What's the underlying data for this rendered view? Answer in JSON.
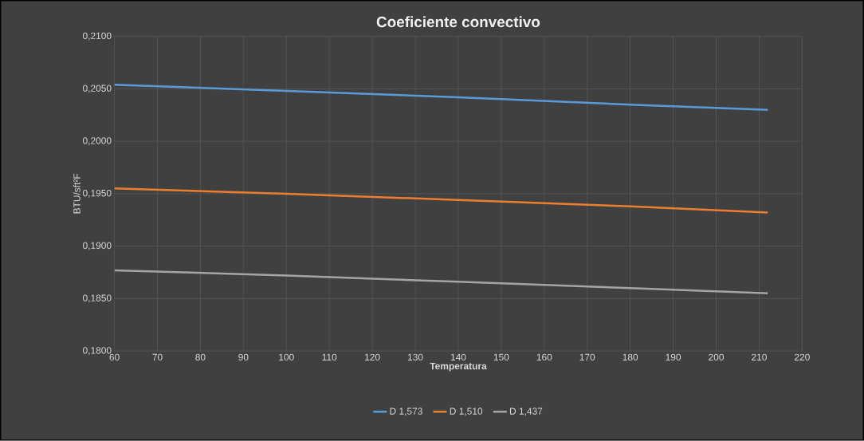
{
  "chart_data": {
    "type": "line",
    "title": "Coeficiente convectivo",
    "xlabel": "Temperatura",
    "ylabel": "BTU/sft²F",
    "x": [
      60,
      100,
      140,
      180,
      212
    ],
    "series": [
      {
        "name": "D 1,573",
        "color": "#5b9bd5",
        "values": [
          0.2054,
          0.2048,
          0.2042,
          0.2035,
          0.203
        ]
      },
      {
        "name": "D 1,510",
        "color": "#ed7d31",
        "values": [
          0.1955,
          0.195,
          0.1944,
          0.1938,
          0.1932
        ]
      },
      {
        "name": "D 1,437",
        "color": "#a5a5a5",
        "values": [
          0.1877,
          0.1872,
          0.1866,
          0.186,
          0.1855
        ]
      }
    ],
    "xlim": [
      60,
      220
    ],
    "xticks": [
      60,
      70,
      80,
      90,
      100,
      110,
      120,
      130,
      140,
      150,
      160,
      170,
      180,
      190,
      200,
      210,
      220
    ],
    "ylim": [
      0.18,
      0.21
    ],
    "yticks": [
      {
        "value": 0.18,
        "label": "0,1800"
      },
      {
        "value": 0.185,
        "label": "0,1850"
      },
      {
        "value": 0.19,
        "label": "0,1900"
      },
      {
        "value": 0.195,
        "label": "0,1950"
      },
      {
        "value": 0.2,
        "label": "0,2000"
      },
      {
        "value": 0.205,
        "label": "0,2050"
      },
      {
        "value": 0.21,
        "label": "0,2100"
      }
    ],
    "grid": true,
    "legend": "bottom",
    "marker": "none",
    "line_style": "solid"
  }
}
